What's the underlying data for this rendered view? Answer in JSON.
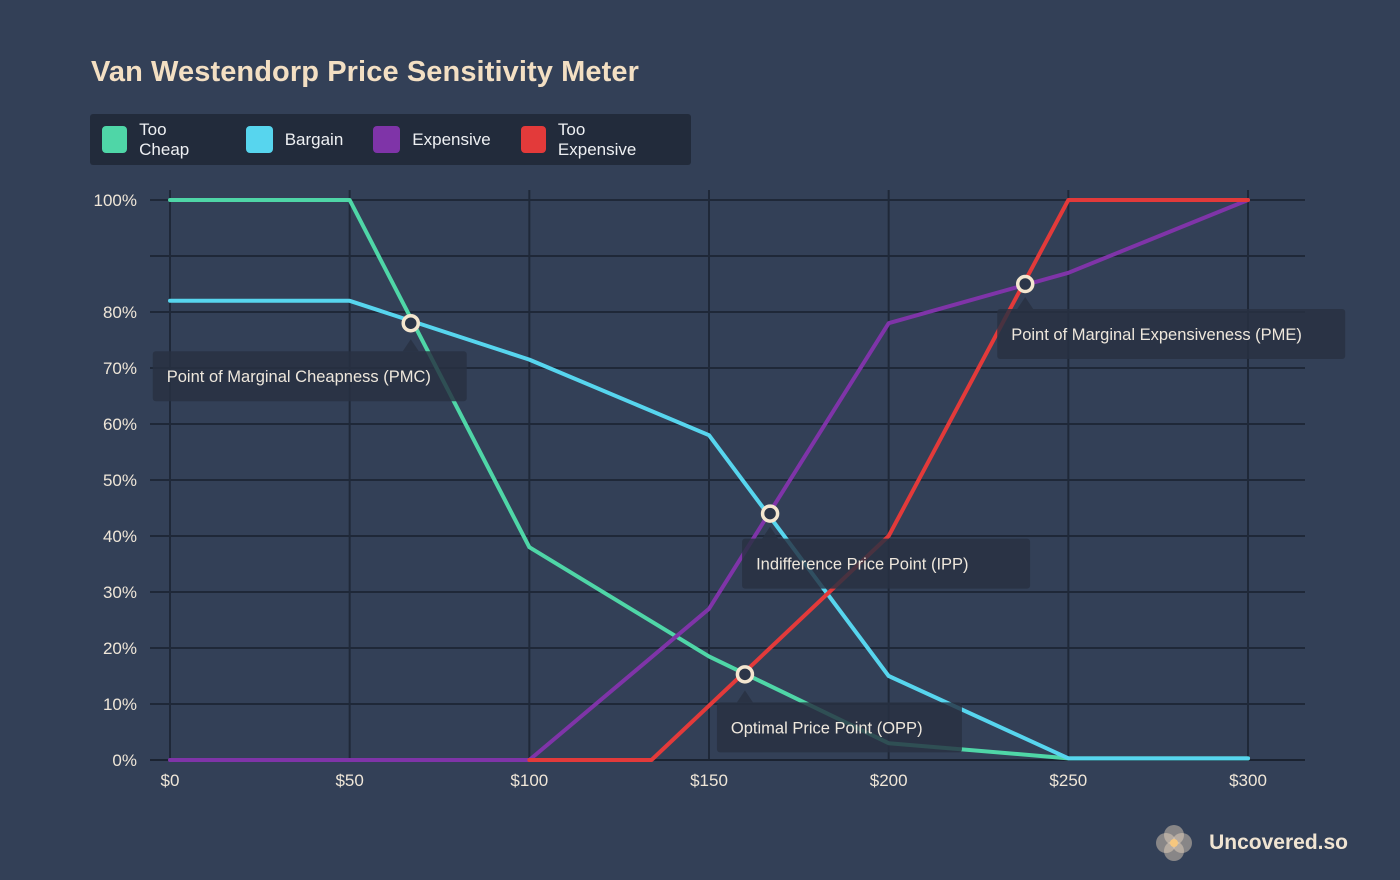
{
  "brand": {
    "name": "Uncovered.so",
    "logo_icon": "flower-logo-icon"
  },
  "chart_data": {
    "type": "line",
    "title": "Van Westendorp Price Sensitivity Meter",
    "xlabel": "",
    "ylabel": "",
    "xlim": [
      0,
      300
    ],
    "ylim": [
      0,
      100
    ],
    "x_ticks": [
      0,
      50,
      100,
      150,
      200,
      250,
      300
    ],
    "x_tick_labels": [
      "$0",
      "$50",
      "$100",
      "$150",
      "$200",
      "$250",
      "$300"
    ],
    "y_ticks": [
      0,
      10,
      20,
      30,
      40,
      50,
      60,
      70,
      80,
      100
    ],
    "y_tick_labels": [
      "0%",
      "10%",
      "20%",
      "30%",
      "40%",
      "50%",
      "60%",
      "70%",
      "80%",
      "100%"
    ],
    "grid": true,
    "legend_position": "top-left",
    "series": [
      {
        "name": "Too Cheap",
        "color": "#4fd6a7",
        "points": [
          [
            0,
            100
          ],
          [
            50,
            100
          ],
          [
            100,
            38
          ],
          [
            150,
            18.5
          ],
          [
            200,
            3
          ],
          [
            250,
            0.3
          ],
          [
            300,
            0.3
          ]
        ]
      },
      {
        "name": "Bargain",
        "color": "#57d5ee",
        "points": [
          [
            0,
            82
          ],
          [
            50,
            82
          ],
          [
            100,
            71.5
          ],
          [
            150,
            58
          ],
          [
            200,
            15
          ],
          [
            250,
            0.3
          ],
          [
            300,
            0.3
          ]
        ]
      },
      {
        "name": "Expensive",
        "color": "#7f34a8",
        "points": [
          [
            0,
            0
          ],
          [
            100,
            0
          ],
          [
            150,
            27
          ],
          [
            200,
            78
          ],
          [
            250,
            87
          ],
          [
            300,
            100
          ]
        ]
      },
      {
        "name": "Too Expensive",
        "color": "#e33a3a",
        "points": [
          [
            100,
            0
          ],
          [
            134,
            0
          ],
          [
            200,
            40
          ],
          [
            250,
            100
          ],
          [
            300,
            100
          ]
        ]
      }
    ],
    "annotations": [
      {
        "label": "Point of Marginal Cheapness (PMC)",
        "x": 67,
        "y": 78,
        "box_anchor": "below-left"
      },
      {
        "label": "Indifference Price Point (IPP)",
        "x": 167,
        "y": 44,
        "box_anchor": "below-right"
      },
      {
        "label": "Optimal Price Point (OPP)",
        "x": 160,
        "y": 15.3,
        "box_anchor": "below"
      },
      {
        "label": "Point of Marginal Expensiveness (PME)",
        "x": 238,
        "y": 85,
        "box_anchor": "below-right"
      }
    ]
  }
}
